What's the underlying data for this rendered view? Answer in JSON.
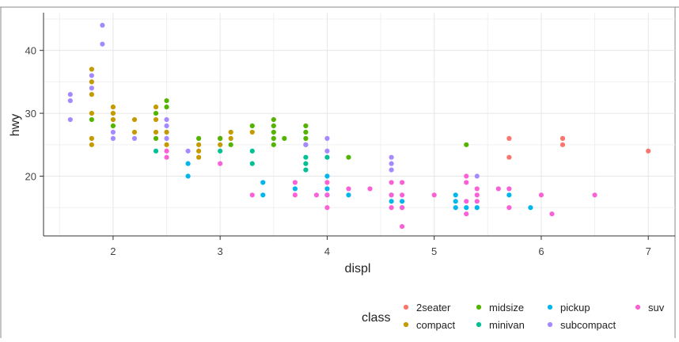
{
  "chart_data": {
    "type": "scatter",
    "xlabel": "displ",
    "ylabel": "hwy",
    "xlim": [
      1.35,
      7.25
    ],
    "ylim": [
      10.5,
      46
    ],
    "x_ticks": [
      "2",
      "3",
      "4",
      "5",
      "6",
      "7"
    ],
    "y_ticks": [
      "20",
      "30",
      "40"
    ],
    "grid": true,
    "legend": {
      "title": "class",
      "position": "bottom"
    },
    "series": [
      {
        "name": "2seater",
        "color": "#F8766D",
        "points": [
          [
            5.7,
            26
          ],
          [
            5.7,
            23
          ],
          [
            6.2,
            26
          ],
          [
            6.2,
            25
          ],
          [
            7.0,
            24
          ]
        ]
      },
      {
        "name": "compact",
        "color": "#C49A00",
        "points": [
          [
            1.8,
            37
          ],
          [
            1.8,
            35
          ],
          [
            1.8,
            33
          ],
          [
            1.8,
            30
          ],
          [
            1.8,
            26
          ],
          [
            1.8,
            25
          ],
          [
            2.0,
            31
          ],
          [
            2.0,
            30
          ],
          [
            2.0,
            29
          ],
          [
            2.2,
            29
          ],
          [
            2.2,
            27
          ],
          [
            2.4,
            31
          ],
          [
            2.4,
            29
          ],
          [
            2.4,
            27
          ],
          [
            2.5,
            27
          ],
          [
            2.5,
            25
          ],
          [
            2.8,
            25
          ],
          [
            2.8,
            24
          ],
          [
            2.8,
            23
          ],
          [
            3.0,
            26
          ],
          [
            3.0,
            25
          ],
          [
            3.1,
            27
          ],
          [
            3.1,
            26
          ],
          [
            3.3,
            27
          ]
        ]
      },
      {
        "name": "midsize",
        "color": "#53B400",
        "points": [
          [
            1.8,
            29
          ],
          [
            2.0,
            28
          ],
          [
            2.4,
            30
          ],
          [
            2.4,
            26
          ],
          [
            2.5,
            32
          ],
          [
            2.5,
            31
          ],
          [
            2.8,
            26
          ],
          [
            3.0,
            26
          ],
          [
            3.1,
            25
          ],
          [
            3.3,
            28
          ],
          [
            3.5,
            29
          ],
          [
            3.5,
            28
          ],
          [
            3.5,
            27
          ],
          [
            3.5,
            26
          ],
          [
            3.5,
            25
          ],
          [
            3.6,
            26
          ],
          [
            3.8,
            28
          ],
          [
            3.8,
            27
          ],
          [
            3.8,
            26
          ],
          [
            3.8,
            25
          ],
          [
            4.2,
            23
          ],
          [
            5.3,
            25
          ]
        ]
      },
      {
        "name": "minivan",
        "color": "#00C094",
        "points": [
          [
            2.4,
            24
          ],
          [
            3.0,
            24
          ],
          [
            3.3,
            24
          ],
          [
            3.3,
            22
          ],
          [
            3.8,
            23
          ],
          [
            3.8,
            22
          ],
          [
            3.8,
            21
          ],
          [
            4.0,
            23
          ]
        ]
      },
      {
        "name": "pickup",
        "color": "#00B6EB",
        "points": [
          [
            2.7,
            22
          ],
          [
            2.7,
            20
          ],
          [
            3.4,
            19
          ],
          [
            3.4,
            17
          ],
          [
            3.7,
            18
          ],
          [
            4.0,
            20
          ],
          [
            4.0,
            18
          ],
          [
            4.0,
            17
          ],
          [
            4.2,
            17
          ],
          [
            4.6,
            17
          ],
          [
            4.6,
            16
          ],
          [
            4.7,
            16
          ],
          [
            4.7,
            15
          ],
          [
            5.2,
            17
          ],
          [
            5.2,
            16
          ],
          [
            5.2,
            15
          ],
          [
            5.3,
            15
          ],
          [
            5.4,
            15
          ],
          [
            5.7,
            17
          ],
          [
            5.9,
            15
          ]
        ]
      },
      {
        "name": "subcompact",
        "color": "#A58AFF",
        "points": [
          [
            1.6,
            33
          ],
          [
            1.6,
            32
          ],
          [
            1.6,
            29
          ],
          [
            1.8,
            36
          ],
          [
            1.8,
            34
          ],
          [
            1.9,
            44
          ],
          [
            1.9,
            41
          ],
          [
            2.0,
            27
          ],
          [
            2.0,
            26
          ],
          [
            2.2,
            26
          ],
          [
            2.5,
            29
          ],
          [
            2.5,
            28
          ],
          [
            2.5,
            26
          ],
          [
            2.7,
            24
          ],
          [
            3.8,
            25
          ],
          [
            4.0,
            26
          ],
          [
            4.0,
            24
          ],
          [
            4.6,
            23
          ],
          [
            4.6,
            22
          ],
          [
            4.6,
            21
          ],
          [
            5.4,
            20
          ]
        ]
      },
      {
        "name": "suv",
        "color": "#FB61D7",
        "points": [
          [
            2.5,
            24
          ],
          [
            2.5,
            23
          ],
          [
            3.0,
            22
          ],
          [
            3.3,
            17
          ],
          [
            3.7,
            19
          ],
          [
            3.7,
            17
          ],
          [
            3.9,
            17
          ],
          [
            4.0,
            19
          ],
          [
            4.0,
            17
          ],
          [
            4.0,
            15
          ],
          [
            4.2,
            18
          ],
          [
            4.4,
            18
          ],
          [
            4.6,
            19
          ],
          [
            4.6,
            17
          ],
          [
            4.6,
            15
          ],
          [
            4.7,
            19
          ],
          [
            4.7,
            17
          ],
          [
            4.7,
            15
          ],
          [
            4.7,
            12
          ],
          [
            5.0,
            17
          ],
          [
            5.3,
            20
          ],
          [
            5.3,
            19
          ],
          [
            5.3,
            16
          ],
          [
            5.3,
            14
          ],
          [
            5.4,
            18
          ],
          [
            5.4,
            17
          ],
          [
            5.4,
            16
          ],
          [
            5.6,
            18
          ],
          [
            5.7,
            18
          ],
          [
            5.7,
            15
          ],
          [
            6.0,
            17
          ],
          [
            6.1,
            14
          ],
          [
            6.5,
            17
          ]
        ]
      }
    ]
  }
}
